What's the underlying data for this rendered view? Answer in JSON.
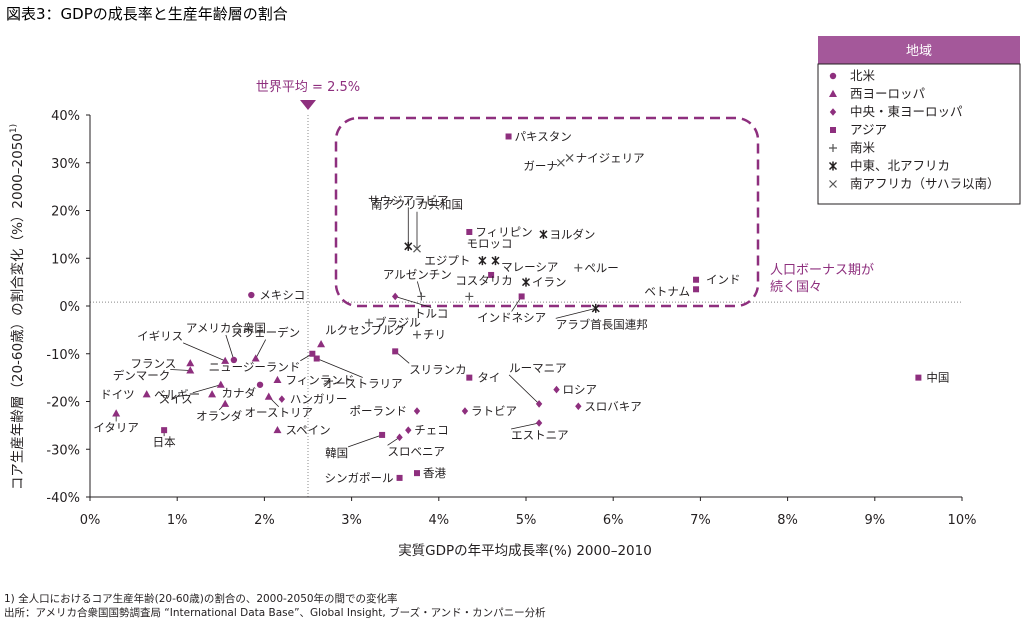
{
  "header": {
    "title": "図表3：GDPの成長率と生産年齢層の割合"
  },
  "annotations": {
    "world_avg": "世界平均 = 2.5%",
    "bonus_line1": "人口ボーナス期が",
    "bonus_line2": "続く国々"
  },
  "footnote": {
    "line1": "1) 全人口におけるコア生産年齢(20-60歳)の割合の、2000-2050年の間での変化率",
    "line2": "出所：アメリカ合衆国国勢調査局 “International Data Base”、Global Insight, ブーズ・アンド・カンパニー分析"
  },
  "colors": {
    "accent": "#8e2f7e",
    "axis": "#231f20",
    "grid": "#888888"
  },
  "chart_data": {
    "type": "scatter",
    "xlabel": "実質GDPの年平均成長率(%) 2000–2010",
    "ylabel": "コア生産年齢層（20-60歳）の割合変化（%）2000–2050",
    "ylabel_sup": "1)",
    "xlim": [
      0,
      10
    ],
    "ylim": [
      -40,
      40
    ],
    "x_ticks": [
      0,
      1,
      2,
      3,
      4,
      5,
      6,
      7,
      8,
      9,
      10
    ],
    "x_tick_labels": [
      "0%",
      "1%",
      "2%",
      "3%",
      "4%",
      "5%",
      "6%",
      "7%",
      "8%",
      "9%",
      "10%"
    ],
    "y_ticks": [
      40,
      30,
      20,
      10,
      0,
      -10,
      -20,
      -30,
      -40
    ],
    "y_tick_labels": [
      "40%",
      "30%",
      "20%",
      "10%",
      "0%",
      "-10%",
      "-20%",
      "-30%",
      "-40%"
    ],
    "reference_lines": {
      "x": 2.5,
      "y": 0.8
    },
    "legend": {
      "title": "地域",
      "position": "top-right",
      "items": [
        {
          "key": "north_america",
          "marker": "circle",
          "label": "北米"
        },
        {
          "key": "western_europe",
          "marker": "triangle",
          "label": "西ヨーロッパ"
        },
        {
          "key": "central_eastern_europe",
          "marker": "diamond",
          "label": "中央・東ヨーロッパ"
        },
        {
          "key": "asia",
          "marker": "square",
          "label": "アジア"
        },
        {
          "key": "south_america",
          "marker": "plus",
          "label": "南米"
        },
        {
          "key": "mena",
          "marker": "asterisk",
          "label": "中東、北アフリカ"
        },
        {
          "key": "ssa",
          "marker": "cross",
          "label": "南アフリカ（サハラ以南）"
        }
      ]
    },
    "points": [
      {
        "label": "メキシコ",
        "region": "north_america",
        "x": 1.85,
        "y": 2.3
      },
      {
        "label": "アメリカ合衆国",
        "region": "north_america",
        "x": 1.65,
        "y": -11.3
      },
      {
        "label": "カナダ",
        "region": "north_america",
        "x": 1.95,
        "y": -16.5
      },
      {
        "label": "イギリス",
        "region": "western_europe",
        "x": 1.55,
        "y": -11.5
      },
      {
        "label": "スウェーデン",
        "region": "western_europe",
        "x": 1.9,
        "y": -11
      },
      {
        "label": "フランス",
        "region": "western_europe",
        "x": 1.15,
        "y": -12
      },
      {
        "label": "デンマーク",
        "region": "western_europe",
        "x": 1.15,
        "y": -13.5
      },
      {
        "label": "ドイツ",
        "region": "western_europe",
        "x": 0.65,
        "y": -18.5
      },
      {
        "label": "ベルギー",
        "region": "western_europe",
        "x": 1.4,
        "y": -18.5
      },
      {
        "label": "スイス",
        "region": "western_europe",
        "x": 1.5,
        "y": -16.5
      },
      {
        "label": "イタリア",
        "region": "western_europe",
        "x": 0.3,
        "y": -22.5
      },
      {
        "label": "オランダ",
        "region": "western_europe",
        "x": 1.55,
        "y": -20.5
      },
      {
        "label": "オーストリア",
        "region": "western_europe",
        "x": 2.05,
        "y": -19
      },
      {
        "label": "フィンランド",
        "region": "western_europe",
        "x": 2.15,
        "y": -15.5
      },
      {
        "label": "スペイン",
        "region": "western_europe",
        "x": 2.15,
        "y": -26
      },
      {
        "label": "ルクセンブルグ",
        "region": "western_europe",
        "x": 2.65,
        "y": -8
      },
      {
        "label": "ハンガリー",
        "region": "central_eastern_europe",
        "x": 2.2,
        "y": -19.5
      },
      {
        "label": "ポーランド",
        "region": "central_eastern_europe",
        "x": 3.75,
        "y": -22
      },
      {
        "label": "チェコ",
        "region": "central_eastern_europe",
        "x": 3.65,
        "y": -26
      },
      {
        "label": "スロベニア",
        "region": "central_eastern_europe",
        "x": 3.55,
        "y": -27.5
      },
      {
        "label": "ラトビア",
        "region": "central_eastern_europe",
        "x": 4.3,
        "y": -22
      },
      {
        "label": "ルーマニア",
        "region": "central_eastern_europe",
        "x": 5.15,
        "y": -20.5
      },
      {
        "label": "エストニア",
        "region": "central_eastern_europe",
        "x": 5.15,
        "y": -24.5
      },
      {
        "label": "ロシア",
        "region": "central_eastern_europe",
        "x": 5.35,
        "y": -17.5
      },
      {
        "label": "スロバキア",
        "region": "central_eastern_europe",
        "x": 5.6,
        "y": -21
      },
      {
        "label": "トルコ",
        "region": "central_eastern_europe",
        "x": 3.5,
        "y": 2
      },
      {
        "label": "日本",
        "region": "asia",
        "x": 0.85,
        "y": -26
      },
      {
        "label": "韓国",
        "region": "asia",
        "x": 3.35,
        "y": -27
      },
      {
        "label": "シンガポール",
        "region": "asia",
        "x": 3.55,
        "y": -36
      },
      {
        "label": "香港",
        "region": "asia",
        "x": 3.75,
        "y": -35
      },
      {
        "label": "ニュージーランド",
        "region": "asia",
        "x": 2.55,
        "y": -10
      },
      {
        "label": "オーストラリア",
        "region": "asia",
        "x": 2.6,
        "y": -11
      },
      {
        "label": "スリランカ",
        "region": "asia",
        "x": 3.5,
        "y": -9.5
      },
      {
        "label": "タイ",
        "region": "asia",
        "x": 4.35,
        "y": -15
      },
      {
        "label": "パキスタン",
        "region": "asia",
        "x": 4.8,
        "y": 35.5
      },
      {
        "label": "フィリピン",
        "region": "asia",
        "x": 4.35,
        "y": 15.5
      },
      {
        "label": "マレーシア",
        "region": "asia",
        "x": 4.6,
        "y": 6.5
      },
      {
        "label": "インドネシア",
        "region": "asia",
        "x": 4.95,
        "y": 2
      },
      {
        "label": "インド",
        "region": "asia",
        "x": 6.95,
        "y": 5.5
      },
      {
        "label": "ベトナム",
        "region": "asia",
        "x": 6.95,
        "y": 3.5
      },
      {
        "label": "中国",
        "region": "asia",
        "x": 9.5,
        "y": -15
      },
      {
        "label": "ブラジル",
        "region": "south_america",
        "x": 3.2,
        "y": -3.5
      },
      {
        "label": "チリ",
        "region": "south_america",
        "x": 3.75,
        "y": -6
      },
      {
        "label": "アルゼンチン",
        "region": "south_america",
        "x": 3.8,
        "y": 2
      },
      {
        "label": "コスタリカ",
        "region": "south_america",
        "x": 4.35,
        "y": 2
      },
      {
        "label": "ペルー",
        "region": "south_america",
        "x": 5.6,
        "y": 8
      },
      {
        "label": "サウジアラビア",
        "region": "mena",
        "x": 3.65,
        "y": 12.5
      },
      {
        "label": "エジプト",
        "region": "mena",
        "x": 4.5,
        "y": 9.5
      },
      {
        "label": "モロッコ",
        "region": "mena",
        "x": 4.65,
        "y": 9.5
      },
      {
        "label": "ヨルダン",
        "region": "mena",
        "x": 5.2,
        "y": 15
      },
      {
        "label": "イラン",
        "region": "mena",
        "x": 5.0,
        "y": 5
      },
      {
        "label": "アラブ首長国連邦",
        "region": "mena",
        "x": 5.8,
        "y": -0.5
      },
      {
        "label": "南アフリカ共和国",
        "region": "ssa",
        "x": 3.75,
        "y": 12
      },
      {
        "label": "ガーナ",
        "region": "ssa",
        "x": 5.4,
        "y": 30
      },
      {
        "label": "ナイジェリア",
        "region": "ssa",
        "x": 5.5,
        "y": 31
      }
    ]
  }
}
